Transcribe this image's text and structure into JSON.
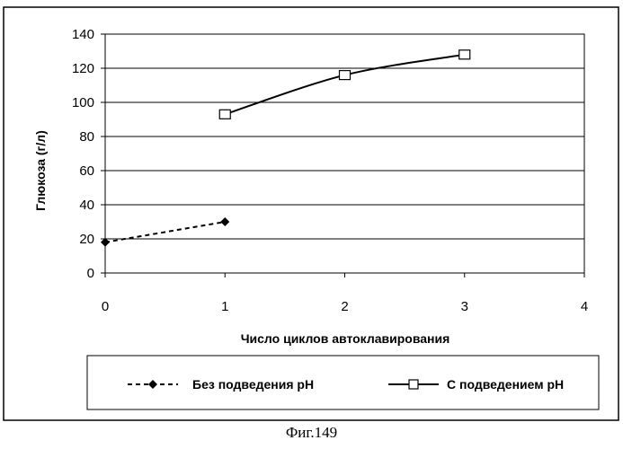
{
  "caption": "Фиг.149",
  "chart_data": {
    "type": "line",
    "title": "",
    "xlabel": "Число циклов автоклавирования",
    "ylabel": "Глюкоза (г/л)",
    "xlim": [
      0,
      4
    ],
    "ylim": [
      0,
      140
    ],
    "x_ticks": [
      0,
      1,
      2,
      3,
      4
    ],
    "y_ticks": [
      0,
      20,
      40,
      60,
      80,
      100,
      120,
      140
    ],
    "grid": "horizontal",
    "legend_position": "bottom",
    "series": [
      {
        "name": "Без подведения pH",
        "marker": "diamond-filled",
        "line": "dashed",
        "points": [
          [
            0,
            18
          ],
          [
            1,
            30
          ]
        ]
      },
      {
        "name": "С подведением pH",
        "marker": "square-open",
        "line": "solid",
        "points": [
          [
            1,
            93
          ],
          [
            2,
            116
          ],
          [
            3,
            128
          ]
        ]
      }
    ]
  }
}
